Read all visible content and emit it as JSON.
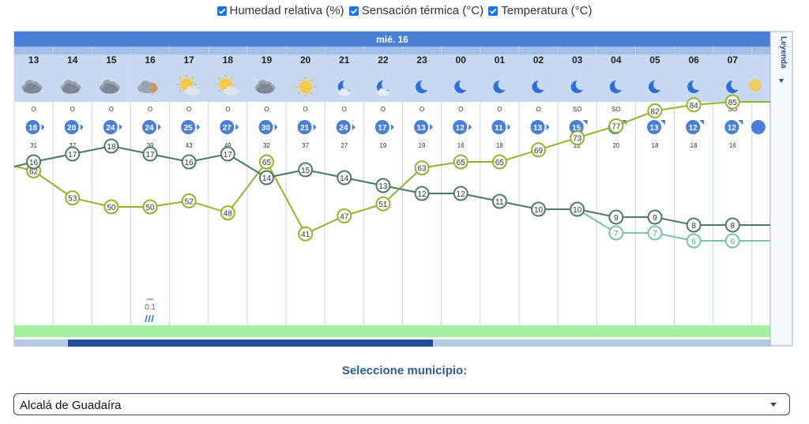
{
  "toggles": [
    {
      "label": "Humedad relativa (%)",
      "checked": true
    },
    {
      "label": "Sensación térmica (°C)",
      "checked": true
    },
    {
      "label": "Temperatura (°C)",
      "checked": true
    }
  ],
  "chart": {
    "day_label": "mié. 16",
    "legend_label": "Leyenda",
    "hours": [
      "13",
      "14",
      "15",
      "16",
      "17",
      "18",
      "19",
      "20",
      "21",
      "22",
      "23",
      "00",
      "01",
      "02",
      "03",
      "04",
      "05",
      "06",
      "07"
    ],
    "icons": [
      "cloudy",
      "cloudy",
      "cloudy",
      "storm",
      "sun-cloud",
      "sun-cloud",
      "cloudy",
      "sun",
      "moon-cloud",
      "moon-cloud",
      "moon",
      "moon",
      "moon",
      "moon",
      "moon",
      "moon",
      "moon",
      "moon",
      "moon"
    ],
    "wind_dir": [
      "O",
      "O",
      "O",
      "O",
      "O",
      "O",
      "O",
      "O",
      "O",
      "O",
      "O",
      "O",
      "O",
      "O",
      "SO",
      "SO",
      "SO",
      "SO",
      "SO"
    ],
    "wind_speed": [
      18,
      20,
      24,
      24,
      25,
      27,
      30,
      21,
      24,
      17,
      13,
      12,
      11,
      13,
      15,
      15,
      13,
      12,
      12
    ],
    "wind_gust": [
      31,
      37,
      37,
      39,
      43,
      49,
      32,
      37,
      27,
      19,
      19,
      16,
      18,
      22,
      22,
      20,
      18,
      18,
      16
    ],
    "precip_value": "0.1",
    "colors": {
      "accent": "#4a7fd4",
      "temperature": "#4f7a6a",
      "feels_like": "#7ebfb0",
      "humidity": "#8fb52b",
      "precip_bar": "#a6f0a1"
    }
  },
  "chart_data": {
    "type": "line",
    "x": [
      "13",
      "14",
      "15",
      "16",
      "17",
      "18",
      "19",
      "20",
      "21",
      "22",
      "23",
      "00",
      "01",
      "02",
      "03",
      "04",
      "05",
      "06",
      "07"
    ],
    "series": [
      {
        "name": "Temperatura (°C)",
        "values": [
          16,
          17,
          18,
          17,
          16,
          17,
          14,
          15,
          14,
          13,
          12,
          12,
          11,
          10,
          10,
          9,
          9,
          8,
          8
        ]
      },
      {
        "name": "Sensación térmica (°C)",
        "values": [
          16,
          17,
          18,
          17,
          16,
          17,
          14,
          15,
          14,
          13,
          12,
          12,
          11,
          10,
          10,
          7,
          7,
          6,
          6
        ]
      },
      {
        "name": "Humedad relativa (%)",
        "values": [
          62,
          53,
          50,
          50,
          52,
          48,
          65,
          41,
          47,
          51,
          63,
          65,
          65,
          69,
          73,
          77,
          82,
          84,
          85
        ]
      }
    ],
    "precipitation": {
      "hour": "16",
      "value": 0.1
    }
  },
  "municipio": {
    "title": "Seleccione municipio:",
    "selected": "Alcalá de Guadaíra"
  }
}
